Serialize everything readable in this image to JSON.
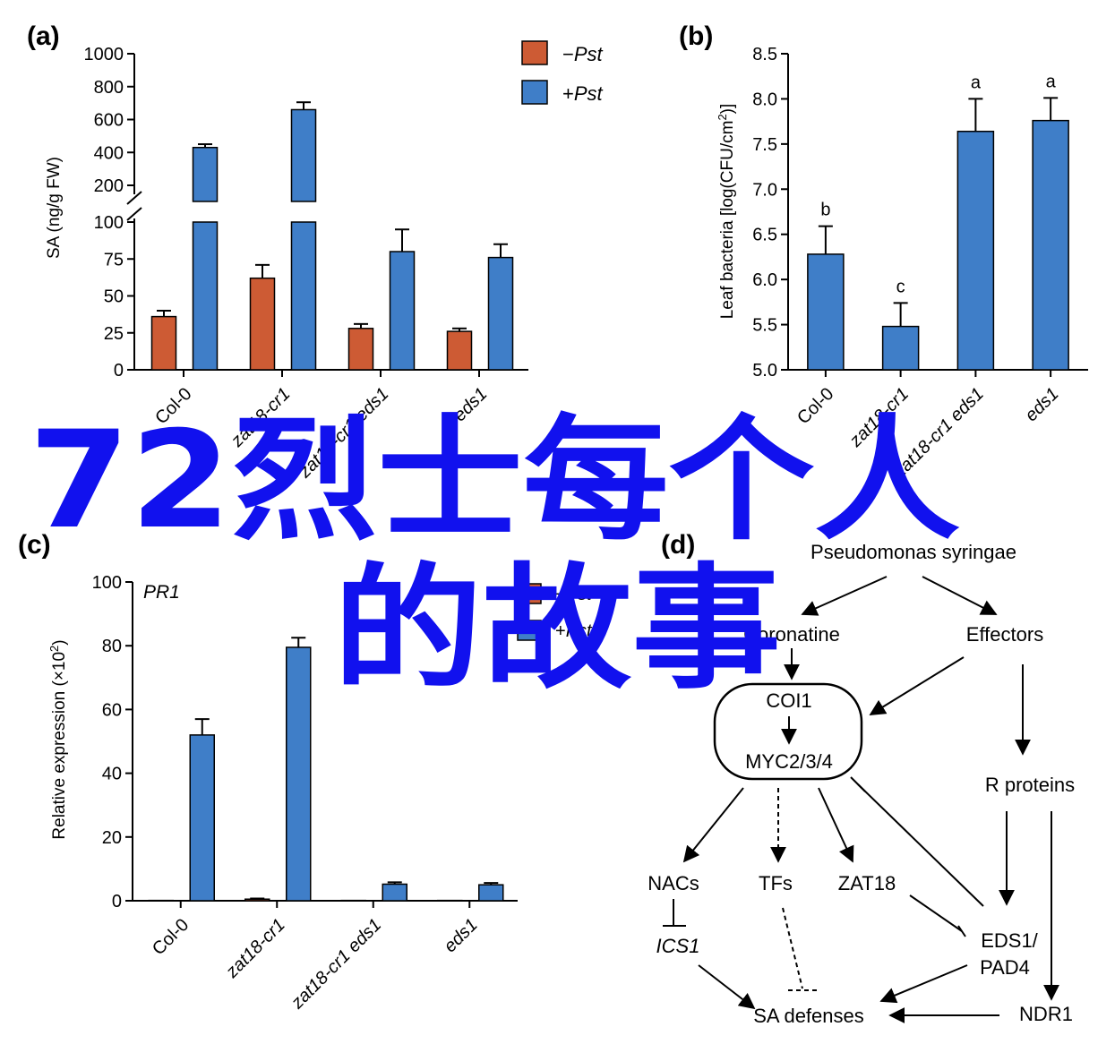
{
  "colors": {
    "minus": "#cd5b34",
    "plus": "#3f7ec8",
    "overlay": "#1111ee"
  },
  "overlay": {
    "line1": "72烈士每个人",
    "line2": "的故事"
  },
  "legend": {
    "minus_label": "−Pst",
    "plus_label": "+Pst",
    "minus_sign": "−",
    "plus_sign": "+",
    "pst": "Pst"
  },
  "chart_data": [
    {
      "panel": "(a)",
      "type": "bar",
      "ylabel": "SA (ng/g FW)",
      "broken_axis": true,
      "lower_range": [
        0,
        100
      ],
      "upper_range": [
        100,
        1000
      ],
      "lower_ticks": [
        "0",
        "25",
        "50",
        "75",
        "100"
      ],
      "upper_ticks": [
        "200",
        "400",
        "600",
        "800",
        "1000"
      ],
      "categories": [
        "Col-0",
        "zat18-cr1",
        "zat18-cr1 eds1",
        "eds1"
      ],
      "series": [
        {
          "name": "−Pst",
          "values": [
            36,
            62,
            28,
            26
          ],
          "errors": [
            4,
            9,
            3,
            2
          ]
        },
        {
          "name": "+Pst",
          "values": [
            430,
            660,
            80,
            76
          ],
          "errors": [
            20,
            45,
            15,
            9
          ]
        }
      ],
      "legend_position": "top-right"
    },
    {
      "panel": "(b)",
      "type": "bar",
      "ylabel": "Leaf bacteria [log(CFU/cm²)]",
      "ylim": [
        5.0,
        8.5
      ],
      "ticks": [
        "5.0",
        "5.5",
        "6.0",
        "6.5",
        "7.0",
        "7.5",
        "8.0",
        "8.5"
      ],
      "categories": [
        "Col-0",
        "zat18-cr1",
        "zat18-cr1 eds1",
        "eds1"
      ],
      "values": [
        6.28,
        5.48,
        7.64,
        7.76
      ],
      "errors": [
        0.31,
        0.26,
        0.36,
        0.25
      ],
      "letters": [
        "b",
        "c",
        "a",
        "a"
      ]
    },
    {
      "panel": "(c)",
      "type": "bar",
      "title": "PR1",
      "ylabel": "Relative expression (×10²)",
      "ylim": [
        0,
        100
      ],
      "ticks": [
        "0",
        "20",
        "40",
        "60",
        "80",
        "100"
      ],
      "categories": [
        "Col-0",
        "zat18-cr1",
        "zat18-cr1 eds1",
        "eds1"
      ],
      "series": [
        {
          "name": "−Pst",
          "values": [
            0.1,
            0.5,
            0.1,
            0.1
          ],
          "errors": [
            0,
            0.2,
            0,
            0
          ]
        },
        {
          "name": "+Pst",
          "values": [
            52,
            79.5,
            5.2,
            5
          ],
          "errors": [
            5,
            3,
            0.6,
            0.6
          ]
        }
      ],
      "legend_position": "top-center"
    }
  ],
  "diagram": {
    "panel": "(d)",
    "nodes": {
      "pseudomonas": "Pseudomonas syringae",
      "coronatine": "Coronatine",
      "effectors": "Effectors",
      "coi1": "COI1",
      "myc": "MYC2/3/4",
      "r_proteins": "R proteins",
      "nacs": "NACs",
      "tfs": "TFs",
      "zat18": "ZAT18",
      "ics1": "ICS1",
      "eds1": "EDS1/",
      "pad4": "PAD4",
      "sa_defenses": "SA defenses",
      "ndr1": "NDR1"
    }
  }
}
